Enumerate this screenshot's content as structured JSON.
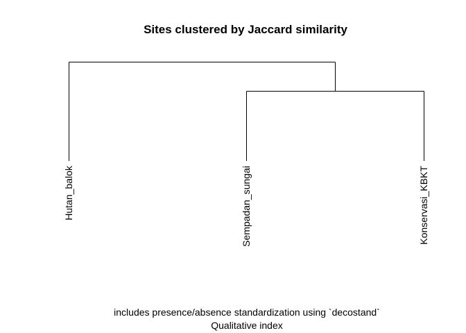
{
  "title": "Sites clustered by Jaccard similarity",
  "leaves": [
    "Hutan_balok",
    "Sempadan_sungai",
    "Konservasi_KBKT"
  ],
  "subtitle_line1": "includes presence/absence standardization using `decostand`",
  "subtitle_line2": "Qualitative index"
}
